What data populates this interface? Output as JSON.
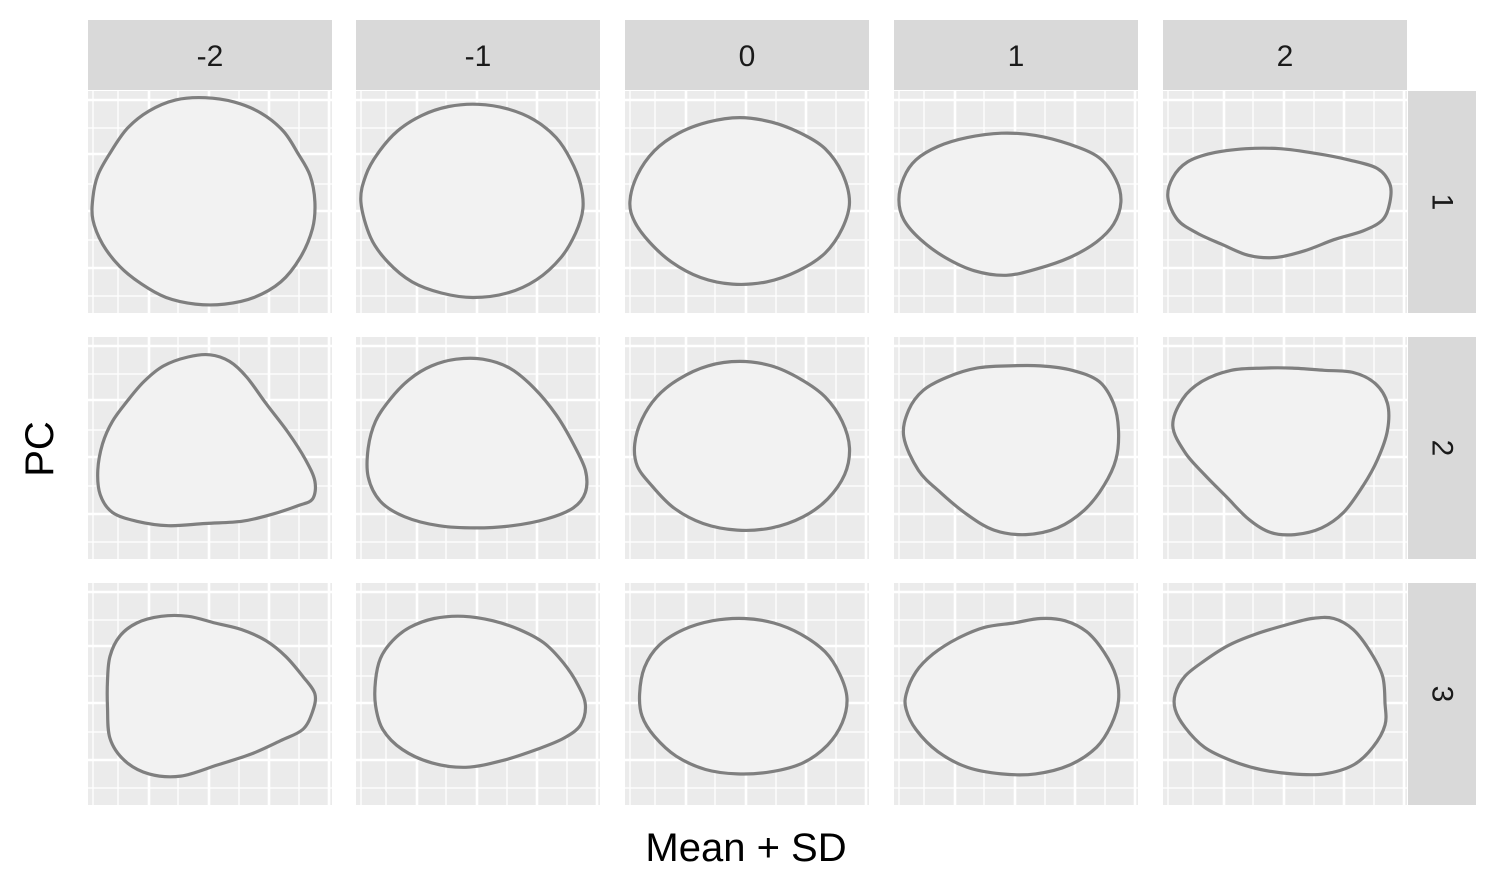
{
  "chart_data": {
    "type": "facet-outline-grid",
    "xlabel": "Mean + SD",
    "ylabel": "PC",
    "col_strips": [
      "-2",
      "-1",
      "0",
      "1",
      "2"
    ],
    "row_strips": [
      "1",
      "2",
      "3"
    ],
    "shapes": [
      [
        [
          [
            0.02,
            0.48
          ],
          [
            0.04,
            0.38
          ],
          [
            0.09,
            0.28
          ],
          [
            0.16,
            0.17
          ],
          [
            0.25,
            0.09
          ],
          [
            0.36,
            0.04
          ],
          [
            0.48,
            0.03
          ],
          [
            0.6,
            0.05
          ],
          [
            0.71,
            0.1
          ],
          [
            0.8,
            0.18
          ],
          [
            0.86,
            0.28
          ],
          [
            0.91,
            0.38
          ],
          [
            0.93,
            0.5
          ],
          [
            0.92,
            0.62
          ],
          [
            0.87,
            0.75
          ],
          [
            0.79,
            0.86
          ],
          [
            0.68,
            0.93
          ],
          [
            0.56,
            0.96
          ],
          [
            0.44,
            0.96
          ],
          [
            0.32,
            0.93
          ],
          [
            0.22,
            0.87
          ],
          [
            0.13,
            0.79
          ],
          [
            0.06,
            0.69
          ],
          [
            0.02,
            0.58
          ]
        ],
        [
          [
            0.02,
            0.5
          ],
          [
            0.04,
            0.38
          ],
          [
            0.09,
            0.28
          ],
          [
            0.17,
            0.18
          ],
          [
            0.27,
            0.11
          ],
          [
            0.38,
            0.07
          ],
          [
            0.5,
            0.06
          ],
          [
            0.62,
            0.08
          ],
          [
            0.73,
            0.13
          ],
          [
            0.82,
            0.21
          ],
          [
            0.88,
            0.31
          ],
          [
            0.92,
            0.42
          ],
          [
            0.93,
            0.53
          ],
          [
            0.9,
            0.64
          ],
          [
            0.84,
            0.75
          ],
          [
            0.74,
            0.85
          ],
          [
            0.62,
            0.91
          ],
          [
            0.48,
            0.93
          ],
          [
            0.35,
            0.91
          ],
          [
            0.23,
            0.86
          ],
          [
            0.13,
            0.77
          ],
          [
            0.06,
            0.66
          ]
        ],
        [
          [
            0.02,
            0.5
          ],
          [
            0.05,
            0.38
          ],
          [
            0.12,
            0.27
          ],
          [
            0.22,
            0.19
          ],
          [
            0.34,
            0.14
          ],
          [
            0.47,
            0.12
          ],
          [
            0.6,
            0.14
          ],
          [
            0.72,
            0.19
          ],
          [
            0.82,
            0.26
          ],
          [
            0.89,
            0.37
          ],
          [
            0.92,
            0.5
          ],
          [
            0.89,
            0.62
          ],
          [
            0.82,
            0.73
          ],
          [
            0.71,
            0.81
          ],
          [
            0.58,
            0.86
          ],
          [
            0.44,
            0.87
          ],
          [
            0.31,
            0.84
          ],
          [
            0.19,
            0.77
          ],
          [
            0.1,
            0.68
          ],
          [
            0.04,
            0.59
          ]
        ],
        [
          [
            0.02,
            0.49
          ],
          [
            0.04,
            0.39
          ],
          [
            0.09,
            0.31
          ],
          [
            0.18,
            0.25
          ],
          [
            0.3,
            0.21
          ],
          [
            0.44,
            0.19
          ],
          [
            0.58,
            0.2
          ],
          [
            0.72,
            0.24
          ],
          [
            0.84,
            0.3
          ],
          [
            0.91,
            0.4
          ],
          [
            0.93,
            0.5
          ],
          [
            0.9,
            0.6
          ],
          [
            0.83,
            0.68
          ],
          [
            0.72,
            0.75
          ],
          [
            0.59,
            0.8
          ],
          [
            0.46,
            0.83
          ],
          [
            0.33,
            0.81
          ],
          [
            0.21,
            0.75
          ],
          [
            0.11,
            0.67
          ],
          [
            0.04,
            0.58
          ]
        ],
        [
          [
            0.02,
            0.48
          ],
          [
            0.04,
            0.39
          ],
          [
            0.1,
            0.32
          ],
          [
            0.2,
            0.28
          ],
          [
            0.34,
            0.26
          ],
          [
            0.48,
            0.26
          ],
          [
            0.62,
            0.28
          ],
          [
            0.76,
            0.31
          ],
          [
            0.88,
            0.35
          ],
          [
            0.93,
            0.42
          ],
          [
            0.93,
            0.5
          ],
          [
            0.9,
            0.58
          ],
          [
            0.82,
            0.63
          ],
          [
            0.7,
            0.67
          ],
          [
            0.58,
            0.72
          ],
          [
            0.46,
            0.75
          ],
          [
            0.35,
            0.74
          ],
          [
            0.24,
            0.69
          ],
          [
            0.14,
            0.64
          ],
          [
            0.06,
            0.58
          ]
        ]
      ],
      [
        [
          [
            0.06,
            0.48
          ],
          [
            0.1,
            0.38
          ],
          [
            0.16,
            0.29
          ],
          [
            0.23,
            0.2
          ],
          [
            0.31,
            0.13
          ],
          [
            0.41,
            0.09
          ],
          [
            0.5,
            0.08
          ],
          [
            0.58,
            0.11
          ],
          [
            0.65,
            0.18
          ],
          [
            0.73,
            0.3
          ],
          [
            0.82,
            0.43
          ],
          [
            0.89,
            0.55
          ],
          [
            0.93,
            0.65
          ],
          [
            0.92,
            0.73
          ],
          [
            0.86,
            0.76
          ],
          [
            0.75,
            0.8
          ],
          [
            0.63,
            0.83
          ],
          [
            0.48,
            0.84
          ],
          [
            0.33,
            0.85
          ],
          [
            0.2,
            0.83
          ],
          [
            0.1,
            0.79
          ],
          [
            0.05,
            0.71
          ],
          [
            0.04,
            0.6
          ]
        ],
        [
          [
            0.05,
            0.5
          ],
          [
            0.08,
            0.38
          ],
          [
            0.14,
            0.28
          ],
          [
            0.22,
            0.19
          ],
          [
            0.31,
            0.13
          ],
          [
            0.41,
            0.1
          ],
          [
            0.52,
            0.1
          ],
          [
            0.63,
            0.14
          ],
          [
            0.73,
            0.23
          ],
          [
            0.82,
            0.35
          ],
          [
            0.89,
            0.48
          ],
          [
            0.94,
            0.6
          ],
          [
            0.94,
            0.7
          ],
          [
            0.89,
            0.77
          ],
          [
            0.78,
            0.82
          ],
          [
            0.64,
            0.85
          ],
          [
            0.49,
            0.86
          ],
          [
            0.34,
            0.85
          ],
          [
            0.2,
            0.81
          ],
          [
            0.1,
            0.74
          ],
          [
            0.05,
            0.63
          ]
        ],
        [
          [
            0.04,
            0.48
          ],
          [
            0.07,
            0.37
          ],
          [
            0.13,
            0.27
          ],
          [
            0.22,
            0.19
          ],
          [
            0.34,
            0.13
          ],
          [
            0.47,
            0.11
          ],
          [
            0.6,
            0.13
          ],
          [
            0.72,
            0.19
          ],
          [
            0.82,
            0.27
          ],
          [
            0.89,
            0.38
          ],
          [
            0.92,
            0.5
          ],
          [
            0.9,
            0.62
          ],
          [
            0.83,
            0.73
          ],
          [
            0.73,
            0.81
          ],
          [
            0.6,
            0.86
          ],
          [
            0.46,
            0.87
          ],
          [
            0.32,
            0.84
          ],
          [
            0.2,
            0.77
          ],
          [
            0.11,
            0.67
          ],
          [
            0.05,
            0.58
          ]
        ],
        [
          [
            0.04,
            0.45
          ],
          [
            0.06,
            0.33
          ],
          [
            0.12,
            0.24
          ],
          [
            0.22,
            0.18
          ],
          [
            0.34,
            0.14
          ],
          [
            0.47,
            0.13
          ],
          [
            0.6,
            0.13
          ],
          [
            0.73,
            0.15
          ],
          [
            0.84,
            0.2
          ],
          [
            0.9,
            0.3
          ],
          [
            0.92,
            0.42
          ],
          [
            0.91,
            0.55
          ],
          [
            0.86,
            0.67
          ],
          [
            0.78,
            0.78
          ],
          [
            0.67,
            0.86
          ],
          [
            0.54,
            0.89
          ],
          [
            0.41,
            0.87
          ],
          [
            0.3,
            0.8
          ],
          [
            0.19,
            0.7
          ],
          [
            0.1,
            0.6
          ]
        ],
        [
          [
            0.04,
            0.4
          ],
          [
            0.08,
            0.28
          ],
          [
            0.16,
            0.2
          ],
          [
            0.28,
            0.15
          ],
          [
            0.41,
            0.14
          ],
          [
            0.53,
            0.14
          ],
          [
            0.66,
            0.15
          ],
          [
            0.78,
            0.16
          ],
          [
            0.87,
            0.21
          ],
          [
            0.92,
            0.3
          ],
          [
            0.92,
            0.42
          ],
          [
            0.88,
            0.55
          ],
          [
            0.82,
            0.67
          ],
          [
            0.74,
            0.79
          ],
          [
            0.65,
            0.86
          ],
          [
            0.54,
            0.89
          ],
          [
            0.44,
            0.88
          ],
          [
            0.35,
            0.82
          ],
          [
            0.26,
            0.72
          ],
          [
            0.17,
            0.62
          ],
          [
            0.09,
            0.52
          ]
        ]
      ],
      [
        [
          [
            0.08,
            0.44
          ],
          [
            0.09,
            0.33
          ],
          [
            0.13,
            0.24
          ],
          [
            0.2,
            0.18
          ],
          [
            0.3,
            0.15
          ],
          [
            0.41,
            0.15
          ],
          [
            0.52,
            0.18
          ],
          [
            0.63,
            0.21
          ],
          [
            0.73,
            0.26
          ],
          [
            0.81,
            0.33
          ],
          [
            0.88,
            0.42
          ],
          [
            0.93,
            0.5
          ],
          [
            0.92,
            0.58
          ],
          [
            0.88,
            0.66
          ],
          [
            0.79,
            0.71
          ],
          [
            0.67,
            0.77
          ],
          [
            0.53,
            0.82
          ],
          [
            0.38,
            0.87
          ],
          [
            0.25,
            0.86
          ],
          [
            0.15,
            0.8
          ],
          [
            0.09,
            0.7
          ],
          [
            0.08,
            0.56
          ]
        ],
        [
          [
            0.08,
            0.44
          ],
          [
            0.1,
            0.34
          ],
          [
            0.15,
            0.26
          ],
          [
            0.22,
            0.2
          ],
          [
            0.32,
            0.16
          ],
          [
            0.44,
            0.15
          ],
          [
            0.56,
            0.17
          ],
          [
            0.67,
            0.21
          ],
          [
            0.77,
            0.27
          ],
          [
            0.85,
            0.36
          ],
          [
            0.91,
            0.46
          ],
          [
            0.94,
            0.55
          ],
          [
            0.92,
            0.64
          ],
          [
            0.85,
            0.7
          ],
          [
            0.74,
            0.75
          ],
          [
            0.6,
            0.8
          ],
          [
            0.45,
            0.83
          ],
          [
            0.31,
            0.81
          ],
          [
            0.19,
            0.75
          ],
          [
            0.11,
            0.66
          ],
          [
            0.08,
            0.55
          ]
        ],
        [
          [
            0.06,
            0.5
          ],
          [
            0.08,
            0.38
          ],
          [
            0.14,
            0.28
          ],
          [
            0.24,
            0.21
          ],
          [
            0.36,
            0.17
          ],
          [
            0.49,
            0.16
          ],
          [
            0.61,
            0.18
          ],
          [
            0.72,
            0.23
          ],
          [
            0.82,
            0.31
          ],
          [
            0.88,
            0.41
          ],
          [
            0.91,
            0.52
          ],
          [
            0.89,
            0.63
          ],
          [
            0.83,
            0.73
          ],
          [
            0.73,
            0.81
          ],
          [
            0.6,
            0.85
          ],
          [
            0.46,
            0.86
          ],
          [
            0.33,
            0.84
          ],
          [
            0.21,
            0.78
          ],
          [
            0.12,
            0.69
          ],
          [
            0.07,
            0.6
          ]
        ],
        [
          [
            0.05,
            0.5
          ],
          [
            0.09,
            0.4
          ],
          [
            0.16,
            0.32
          ],
          [
            0.26,
            0.25
          ],
          [
            0.37,
            0.2
          ],
          [
            0.49,
            0.18
          ],
          [
            0.6,
            0.16
          ],
          [
            0.7,
            0.17
          ],
          [
            0.79,
            0.22
          ],
          [
            0.86,
            0.31
          ],
          [
            0.91,
            0.42
          ],
          [
            0.92,
            0.53
          ],
          [
            0.89,
            0.64
          ],
          [
            0.83,
            0.74
          ],
          [
            0.72,
            0.82
          ],
          [
            0.58,
            0.86
          ],
          [
            0.44,
            0.86
          ],
          [
            0.3,
            0.83
          ],
          [
            0.18,
            0.76
          ],
          [
            0.09,
            0.66
          ],
          [
            0.05,
            0.57
          ]
        ],
        [
          [
            0.05,
            0.5
          ],
          [
            0.09,
            0.42
          ],
          [
            0.17,
            0.35
          ],
          [
            0.27,
            0.28
          ],
          [
            0.38,
            0.23
          ],
          [
            0.5,
            0.19
          ],
          [
            0.61,
            0.16
          ],
          [
            0.7,
            0.16
          ],
          [
            0.78,
            0.21
          ],
          [
            0.85,
            0.31
          ],
          [
            0.9,
            0.42
          ],
          [
            0.91,
            0.54
          ],
          [
            0.91,
            0.64
          ],
          [
            0.86,
            0.74
          ],
          [
            0.78,
            0.82
          ],
          [
            0.66,
            0.86
          ],
          [
            0.53,
            0.86
          ],
          [
            0.4,
            0.84
          ],
          [
            0.28,
            0.8
          ],
          [
            0.17,
            0.74
          ],
          [
            0.09,
            0.65
          ],
          [
            0.05,
            0.57
          ]
        ]
      ]
    ]
  }
}
